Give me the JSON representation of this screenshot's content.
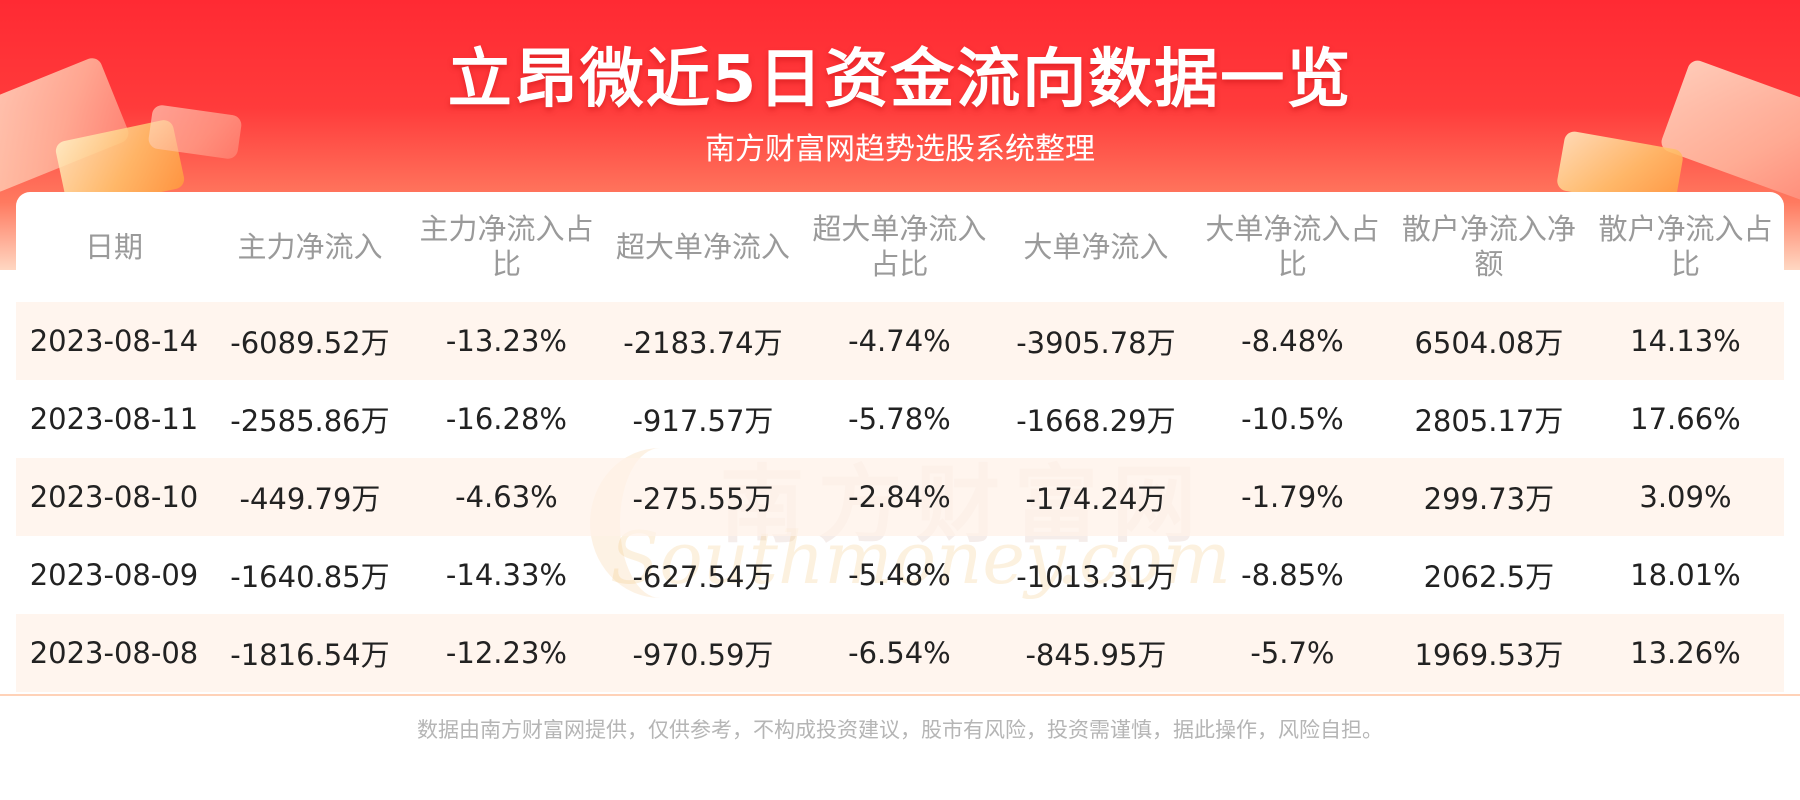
{
  "header": {
    "title": "立昂微近5日资金流向数据一览",
    "subtitle": "南方财富网趋势选股系统整理"
  },
  "table": {
    "columns": [
      "日期",
      "主力净流入",
      "主力净流入占比",
      "超大单净流入",
      "超大单净流入占比",
      "大单净流入",
      "大单净流入占比",
      "散户净流入净额",
      "散户净流入占比"
    ],
    "rows": [
      [
        "2023-08-14",
        "-6089.52万",
        "-13.23%",
        "-2183.74万",
        "-4.74%",
        "-3905.78万",
        "-8.48%",
        "6504.08万",
        "14.13%"
      ],
      [
        "2023-08-11",
        "-2585.86万",
        "-16.28%",
        "-917.57万",
        "-5.78%",
        "-1668.29万",
        "-10.5%",
        "2805.17万",
        "17.66%"
      ],
      [
        "2023-08-10",
        "-449.79万",
        "-4.63%",
        "-275.55万",
        "-2.84%",
        "-174.24万",
        "-1.79%",
        "299.73万",
        "3.09%"
      ],
      [
        "2023-08-09",
        "-1640.85万",
        "-14.33%",
        "-627.54万",
        "-5.48%",
        "-1013.31万",
        "-8.85%",
        "2062.5万",
        "18.01%"
      ],
      [
        "2023-08-08",
        "-1816.54万",
        "-12.23%",
        "-970.59万",
        "-6.54%",
        "-845.95万",
        "-5.7%",
        "1969.53万",
        "13.26%"
      ]
    ]
  },
  "watermark": {
    "cn": "南方财富网",
    "en": "Southmoney.com"
  },
  "footer": {
    "disclaimer": "数据由南方财富网提供，仅供参考，不构成投资建议，股市有风险，投资需谨慎，据此操作，风险自担。"
  },
  "colors": {
    "banner_red": "#ff2a33",
    "header_text": "#9a9a9a",
    "row_stripe": "#fff1e8"
  }
}
